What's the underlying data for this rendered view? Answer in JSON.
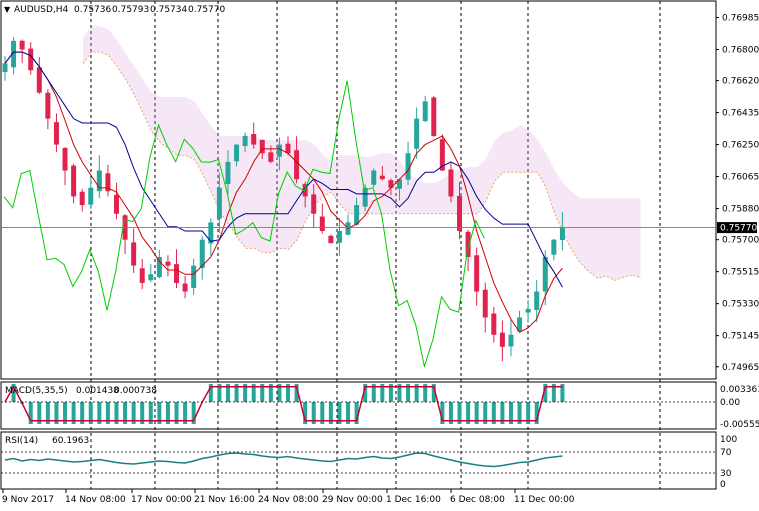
{
  "header": {
    "symbol": "AUDUSD,H4",
    "open": "0.75736",
    "high": "0.75793",
    "low": "0.75734",
    "close": "0.75770"
  },
  "macd": {
    "label": "MACD(5,35,5)",
    "main": "0.001438",
    "signal": "0.000738"
  },
  "rsi": {
    "label": "RSI(14)",
    "value": "60.1963"
  },
  "colors": {
    "bull": "#26a69a",
    "bear": "#e0234e",
    "tenkan": "#cc0000",
    "kijun": "#000099",
    "chikou": "#00cc00",
    "kumo": "#d8a0d8",
    "spanB": "#f0a070",
    "rsi": "#1a7f7f",
    "macd_hist": "#26a69a",
    "macd_signal": "#cc0033"
  },
  "chart_data": [
    {
      "type": "candlestick",
      "pane": "main",
      "y_ticks": [
        "0.76985",
        "0.76800",
        "0.76620",
        "0.76435",
        "0.76250",
        "0.76065",
        "0.75880",
        "0.75700",
        "0.75515",
        "0.75330",
        "0.75145",
        "0.74965"
      ],
      "ylim": [
        0.749,
        0.7704
      ],
      "last_price": 0.7577,
      "last_price_label": "0.75770",
      "x_labels": [
        "9 Nov 2017",
        "14 Nov 08:00",
        "17 Nov 00:00",
        "21 Nov 16:00",
        "24 Nov 08:00",
        "29 Nov 00:00",
        "1 Dec 16:00",
        "6 Dec 08:00",
        "11 Dec 00:00"
      ],
      "close_series": [
        0.7672,
        0.7685,
        0.768,
        0.7668,
        0.7655,
        0.764,
        0.7625,
        0.761,
        0.7595,
        0.759,
        0.76,
        0.761,
        0.7598,
        0.7585,
        0.757,
        0.7555,
        0.7545,
        0.755,
        0.756,
        0.7555,
        0.7545,
        0.754,
        0.7555,
        0.757,
        0.758,
        0.76,
        0.7615,
        0.7625,
        0.763,
        0.7625,
        0.762,
        0.7615,
        0.7625,
        0.762,
        0.7605,
        0.7595,
        0.7585,
        0.7575,
        0.7568,
        0.7575,
        0.758,
        0.759,
        0.76,
        0.761,
        0.7605,
        0.76,
        0.7605,
        0.762,
        0.764,
        0.765,
        0.763,
        0.761,
        0.7595,
        0.7575,
        0.756,
        0.754,
        0.7525,
        0.7515,
        0.7508,
        0.7515,
        0.7525,
        0.753,
        0.754,
        0.756,
        0.757,
        0.7577
      ]
    },
    {
      "type": "histogram",
      "pane": "macd",
      "y_ticks": [
        "0.003361",
        "0.00",
        "-0.00555"
      ],
      "ylim": [
        -0.00555,
        0.003361
      ]
    },
    {
      "type": "line",
      "pane": "rsi",
      "y_ticks": [
        "100",
        "70",
        "30",
        "0"
      ],
      "ylim": [
        0,
        100
      ],
      "levels": [
        70,
        30
      ],
      "rsi_series": [
        52,
        55,
        50,
        53,
        51,
        54,
        52,
        50,
        48,
        49,
        51,
        53,
        50,
        47,
        45,
        44,
        46,
        48,
        50,
        49,
        47,
        46,
        50,
        55,
        58,
        62,
        65,
        66,
        64,
        63,
        60,
        58,
        57,
        59,
        56,
        54,
        52,
        50,
        49,
        52,
        55,
        54,
        57,
        59,
        56,
        55,
        58,
        62,
        66,
        65,
        60,
        56,
        52,
        48,
        45,
        42,
        40,
        39,
        41,
        44,
        47,
        48,
        52,
        56,
        58,
        60
      ]
    }
  ]
}
